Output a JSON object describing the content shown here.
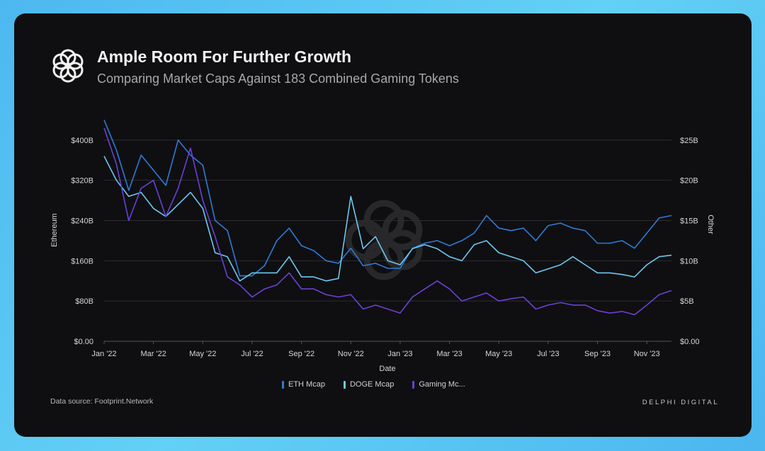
{
  "header": {
    "title": "Ample Room For Further Growth",
    "subtitle": "Comparing Market Caps Against 183 Combined Gaming Tokens"
  },
  "footer": {
    "source": "Data source: Footprint.Network",
    "brand": "DELPHI DIGITAL"
  },
  "chart_data": {
    "type": "line",
    "title": "Ample Room For Further Growth",
    "xlabel": "Date",
    "ylabel": "Ethereum",
    "y2label": "Other",
    "x_tick_labels": [
      "Jan '22",
      "Mar '22",
      "May '22",
      "Jul '22",
      "Sep '22",
      "Nov '22",
      "Jan '23",
      "Mar '23",
      "May '23",
      "Jul '23",
      "Sep '23",
      "Nov '23"
    ],
    "y_tick_labels": [
      "$0.00",
      "$80B",
      "$160B",
      "$240B",
      "$320B",
      "$400B"
    ],
    "y_ticks": [
      0,
      80,
      160,
      240,
      320,
      400
    ],
    "y2_tick_labels": [
      "$0.00",
      "$5B",
      "$10B",
      "$15B",
      "$20B",
      "$25B"
    ],
    "y2_ticks": [
      0,
      5,
      10,
      15,
      20,
      25
    ],
    "ylim": [
      0,
      480
    ],
    "y2lim": [
      0,
      30
    ],
    "x_step": "semi-monthly from Jan 1 2022 to Dec 1 2023",
    "x": [
      "2022-01-01",
      "2022-01-15",
      "2022-02-01",
      "2022-02-15",
      "2022-03-01",
      "2022-03-15",
      "2022-04-01",
      "2022-04-15",
      "2022-05-01",
      "2022-05-15",
      "2022-06-01",
      "2022-06-15",
      "2022-07-01",
      "2022-07-15",
      "2022-08-01",
      "2022-08-15",
      "2022-09-01",
      "2022-09-15",
      "2022-10-01",
      "2022-10-15",
      "2022-11-01",
      "2022-11-15",
      "2022-12-01",
      "2022-12-15",
      "2023-01-01",
      "2023-01-15",
      "2023-02-01",
      "2023-02-15",
      "2023-03-01",
      "2023-03-15",
      "2023-04-01",
      "2023-04-15",
      "2023-05-01",
      "2023-05-15",
      "2023-06-01",
      "2023-06-15",
      "2023-07-01",
      "2023-07-15",
      "2023-08-01",
      "2023-08-15",
      "2023-09-01",
      "2023-09-15",
      "2023-10-01",
      "2023-10-15",
      "2023-11-01",
      "2023-11-15",
      "2023-12-01"
    ],
    "series": [
      {
        "name": "ETH Mcap",
        "axis": "left",
        "color": "#2f7ad8",
        "values": [
          440,
          380,
          300,
          370,
          340,
          310,
          400,
          370,
          350,
          240,
          220,
          130,
          130,
          150,
          200,
          225,
          190,
          180,
          160,
          155,
          185,
          150,
          155,
          145,
          145,
          185,
          195,
          200,
          190,
          200,
          215,
          250,
          225,
          220,
          225,
          200,
          230,
          235,
          225,
          220,
          195,
          195,
          200,
          185,
          215,
          245,
          250
        ]
      },
      {
        "name": "DOGE Mcap",
        "axis": "right",
        "color": "#6cc8f0",
        "values": [
          23,
          20,
          18,
          18.5,
          16.5,
          15.5,
          17,
          18.5,
          16.5,
          11,
          10.5,
          7.5,
          8.5,
          8.5,
          8.5,
          10.5,
          8,
          8,
          7.5,
          7.8,
          18,
          11.5,
          13,
          10,
          9.5,
          11.5,
          12,
          11.5,
          10.5,
          10,
          12,
          12.5,
          11,
          10.5,
          10,
          8.5,
          9,
          9.5,
          10.5,
          9.5,
          8.5,
          8.5,
          8.3,
          8,
          9.5,
          10.5,
          10.7
        ]
      },
      {
        "name": "Gaming Mcap",
        "legend_label": "Gaming Mc...",
        "axis": "right",
        "color": "#6a40d8",
        "values": [
          26.5,
          22,
          15,
          19,
          20,
          15.5,
          19,
          24,
          17.5,
          13,
          8,
          7,
          5.5,
          6.5,
          7,
          8.5,
          6.5,
          6.5,
          5.8,
          5.5,
          5.8,
          4,
          4.5,
          4,
          3.5,
          5.5,
          6.5,
          7.5,
          6.5,
          5,
          5.5,
          6,
          5,
          5.3,
          5.5,
          4,
          4.5,
          4.8,
          4.5,
          4.5,
          3.8,
          3.5,
          3.7,
          3.3,
          4.5,
          5.8,
          6.3
        ]
      }
    ],
    "legend": [
      "ETH Mcap",
      "DOGE Mcap",
      "Gaming Mc..."
    ],
    "legend_placement": "bottom",
    "grid": true
  }
}
